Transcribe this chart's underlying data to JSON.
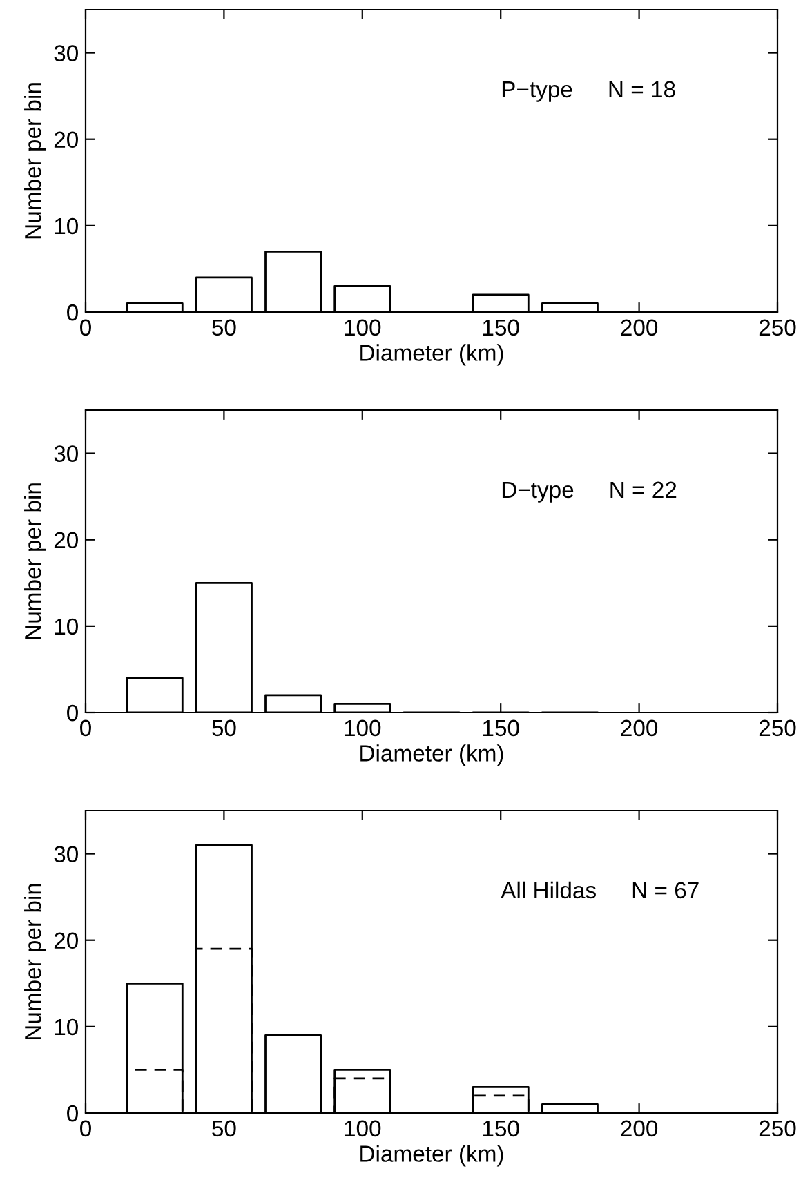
{
  "chart_data": [
    {
      "type": "bar",
      "xlabel": "Diameter (km)",
      "ylabel": "Number per bin",
      "annotations": [
        "P−type",
        "N = 18"
      ],
      "x": [
        25,
        50,
        75,
        100,
        125,
        150,
        175
      ],
      "xlim": [
        0,
        250
      ],
      "xticks": [
        0,
        50,
        100,
        150,
        200,
        250
      ],
      "ylim": [
        0,
        35
      ],
      "yticks": [
        0,
        10,
        20,
        30
      ],
      "grid": false,
      "legend": false,
      "series": [
        {
          "color": "#000000",
          "line_style": "solid",
          "values": [
            1,
            4,
            7,
            3,
            0,
            2,
            1
          ]
        }
      ]
    },
    {
      "type": "bar",
      "xlabel": "Diameter (km)",
      "ylabel": "Number per bin",
      "annotations": [
        "D−type",
        "N = 22"
      ],
      "x": [
        25,
        50,
        75,
        100,
        125,
        150,
        175
      ],
      "xlim": [
        0,
        250
      ],
      "xticks": [
        0,
        50,
        100,
        150,
        200,
        250
      ],
      "ylim": [
        0,
        35
      ],
      "yticks": [
        0,
        10,
        20,
        30
      ],
      "grid": false,
      "legend": false,
      "series": [
        {
          "color": "#000000",
          "line_style": "solid",
          "values": [
            4,
            15,
            2,
            1,
            0,
            0,
            0
          ]
        }
      ]
    },
    {
      "type": "bar",
      "xlabel": "Diameter (km)",
      "ylabel": "Number per bin",
      "annotations": [
        "All Hildas",
        "N = 67"
      ],
      "x": [
        25,
        50,
        75,
        100,
        125,
        150,
        175
      ],
      "xlim": [
        0,
        250
      ],
      "xticks": [
        0,
        50,
        100,
        150,
        200,
        250
      ],
      "ylim": [
        0,
        35
      ],
      "yticks": [
        0,
        10,
        20,
        30
      ],
      "grid": false,
      "legend": false,
      "series": [
        {
          "color": "#000000",
          "line_style": "solid",
          "values": [
            15,
            31,
            9,
            5,
            0,
            3,
            1
          ]
        },
        {
          "color": "#000000",
          "line_style": "dashed",
          "values": [
            5,
            19,
            null,
            4,
            0,
            2,
            null
          ]
        }
      ]
    }
  ]
}
